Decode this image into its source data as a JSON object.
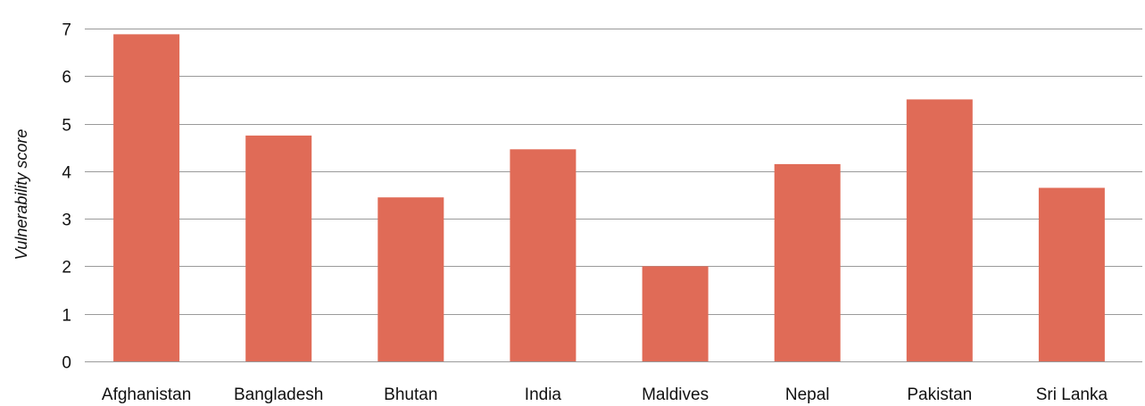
{
  "chart_data": {
    "type": "bar",
    "title": "",
    "xlabel": "",
    "ylabel": "Vulnerability score",
    "categories": [
      "Afghanistan",
      "Bangladesh",
      "Bhutan",
      "India",
      "Maldives",
      "Nepal",
      "Pakistan",
      "Sri Lanka"
    ],
    "values": [
      6.88,
      4.75,
      3.45,
      4.46,
      2.0,
      4.15,
      5.51,
      3.65
    ],
    "y_ticks": [
      0,
      1,
      2,
      3,
      4,
      5,
      6,
      7
    ],
    "ylim": [
      0,
      7
    ],
    "grid": true,
    "legend": "none",
    "colors": {
      "bar": "#e06b57",
      "grid": "#9a9a9a",
      "text": "#111111"
    }
  }
}
